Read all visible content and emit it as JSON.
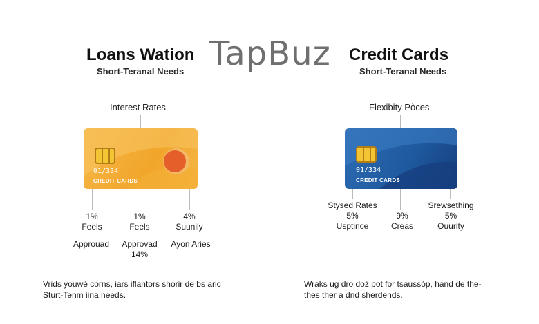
{
  "watermark": "TapBuz",
  "left": {
    "title": "Loans Wation",
    "subtitle": "Short-Teranal Needs",
    "section": "Interest Rates",
    "card": {
      "number": "01/334",
      "label": "CREDIT CARDS"
    },
    "stats": {
      "col1": [
        "1%",
        "Feels"
      ],
      "col2": [
        "1%",
        "Feels"
      ],
      "col3": [
        "4%",
        "Suunily"
      ]
    },
    "labels": {
      "a": "Approuad",
      "b": "Approvad",
      "b2": "14%",
      "c": "Ayon Aries"
    },
    "footer": [
      "Vrids youwè corns, iars iflantors shorir de bs aric",
      "Sturt-Tenm iina needs."
    ]
  },
  "right": {
    "title": "Credit Cards",
    "subtitle": "Short-Teranal Needs",
    "section": "Flexibity Pòces",
    "card": {
      "number": "01/334",
      "label": "CREDIT CARDS"
    },
    "stats": {
      "col1": [
        "Stysed Rates",
        "5%",
        "Usptince"
      ],
      "col2": [
        "9%",
        "Creas"
      ],
      "col3": [
        "Srewsething",
        "5%",
        "Ouurity"
      ]
    },
    "footer": [
      "Wraks ug dro doż pot for tsaussóp, hand de the-",
      "thes ther a dnd sherdends."
    ]
  }
}
